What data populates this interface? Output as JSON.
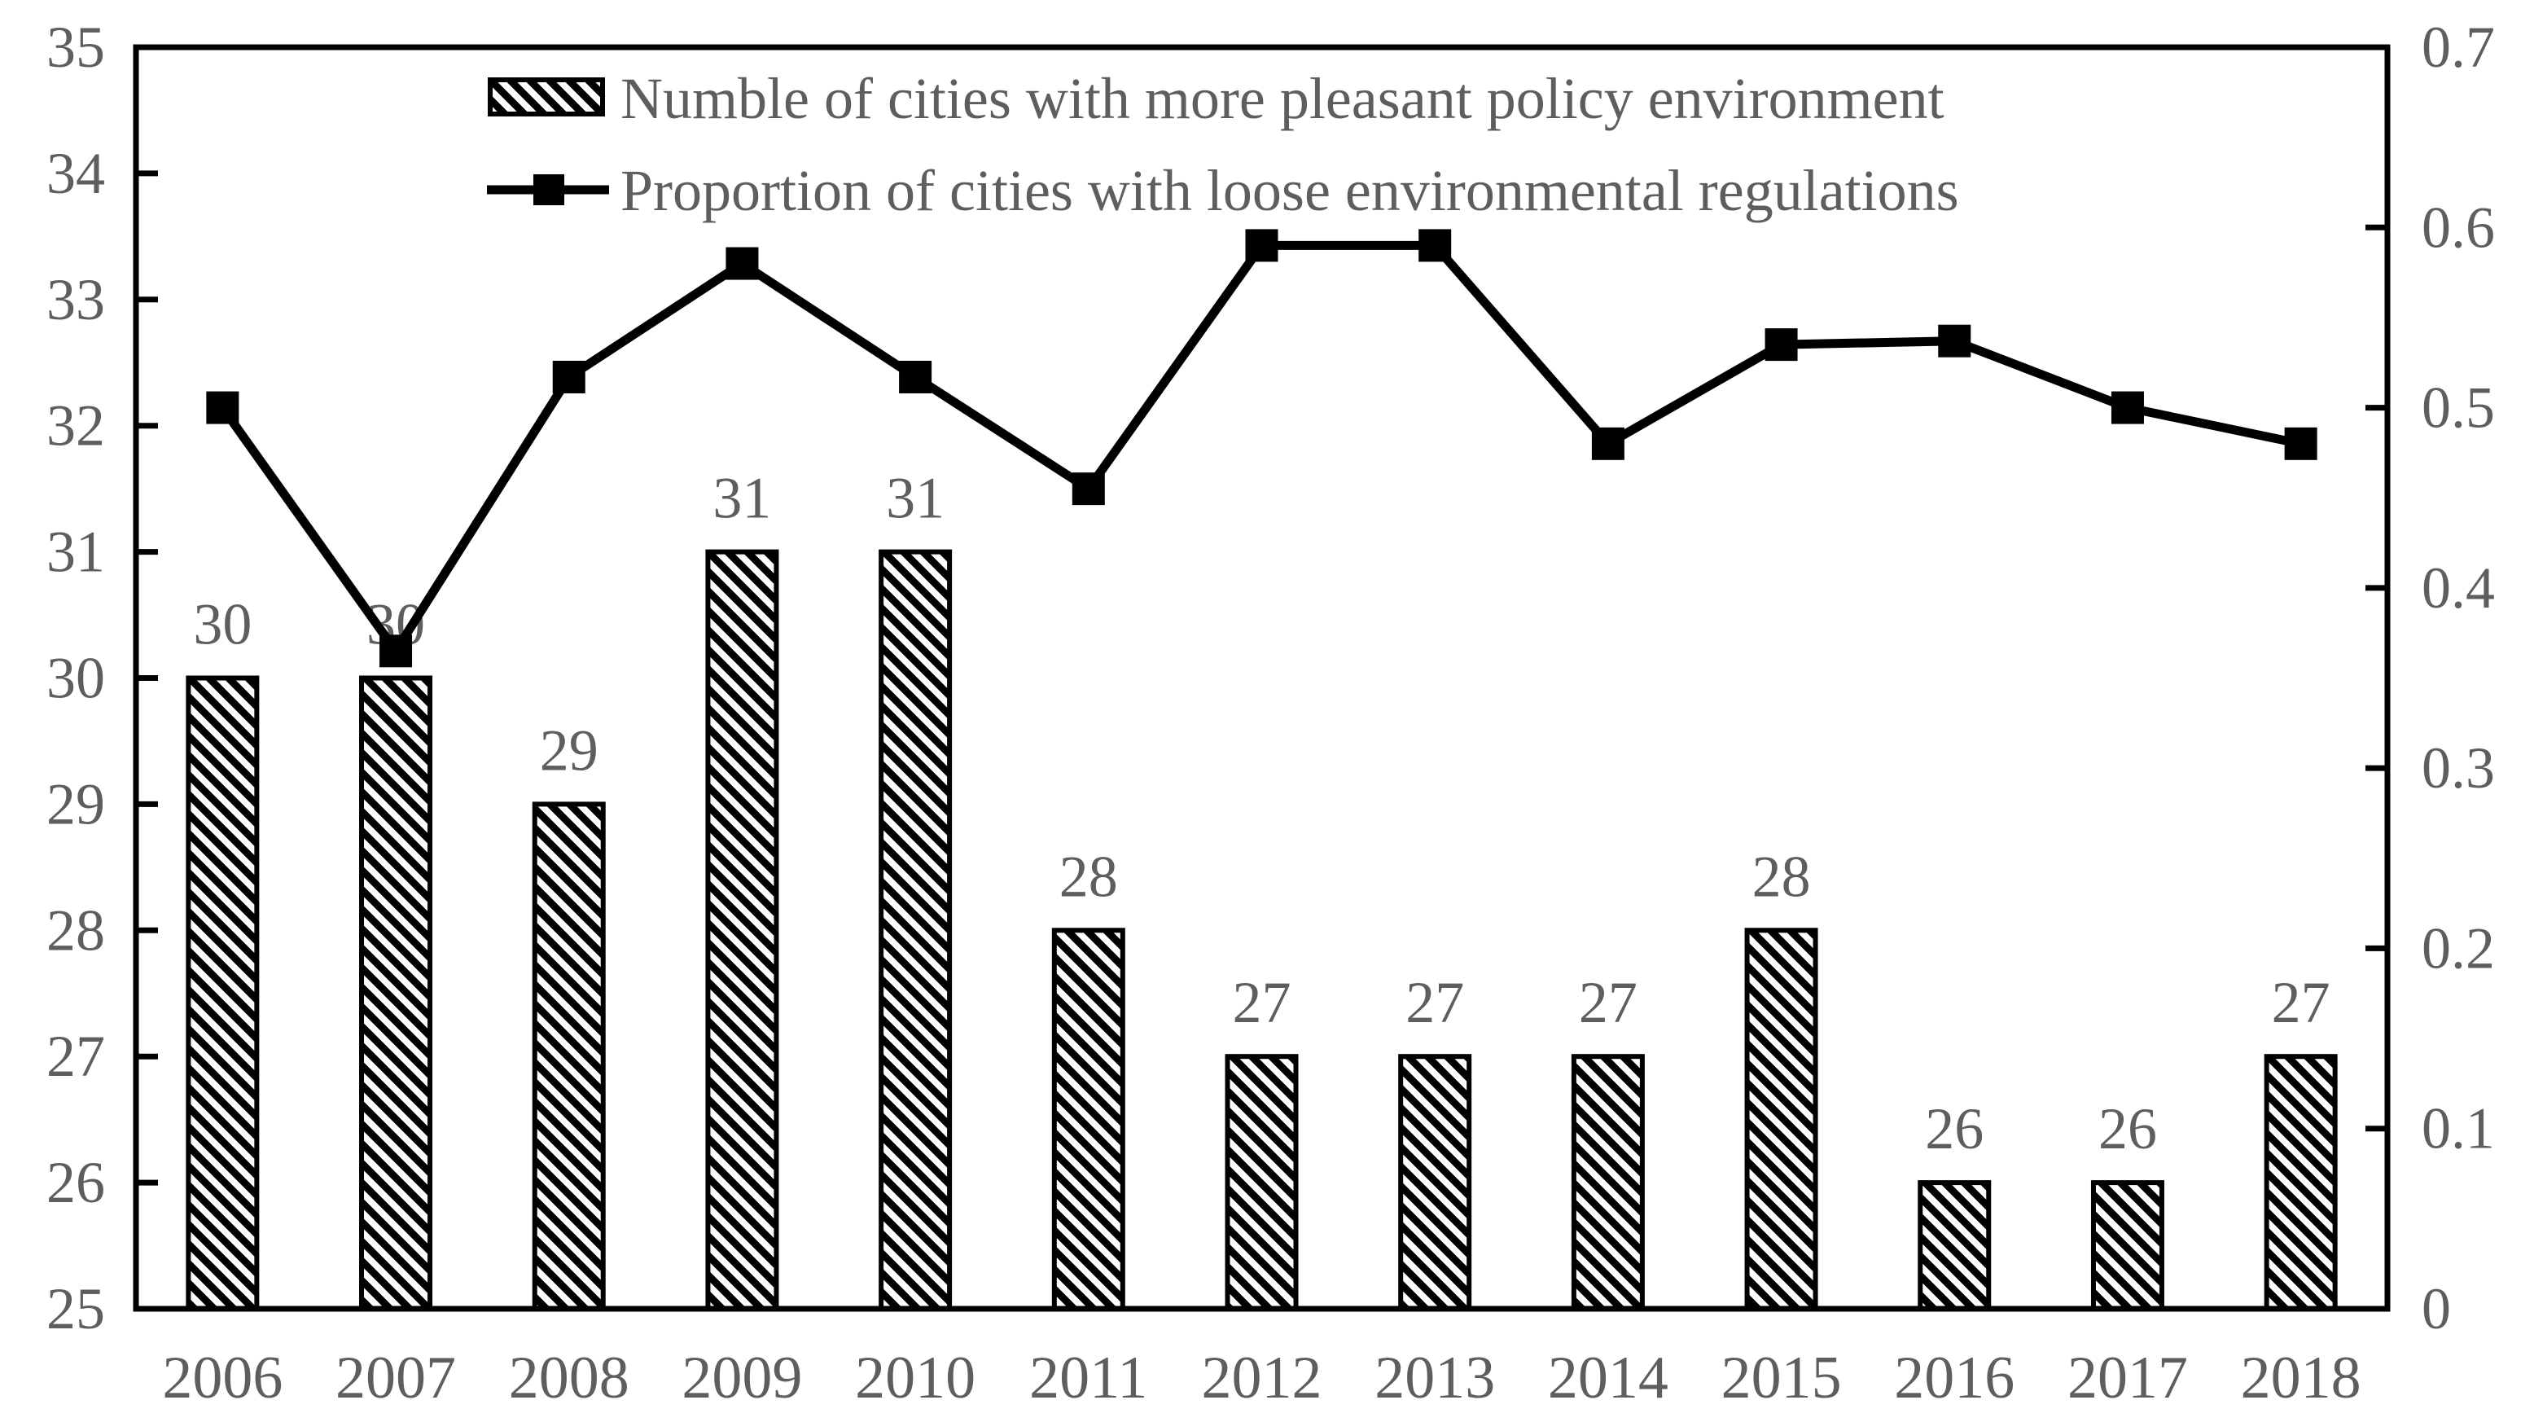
{
  "chart_data": {
    "type": "combo",
    "categories": [
      "2006",
      "2007",
      "2008",
      "2009",
      "2010",
      "2011",
      "2012",
      "2013",
      "2014",
      "2015",
      "2016",
      "2017",
      "2018"
    ],
    "series": [
      {
        "name": "Numble of cities with more pleasant policy environment",
        "type": "bar",
        "axis": "left",
        "values": [
          30,
          30,
          29,
          31,
          31,
          28,
          27,
          27,
          27,
          28,
          26,
          26,
          27
        ],
        "data_labels": [
          "30",
          "30",
          "29",
          "31",
          "31",
          "28",
          "27",
          "27",
          "27",
          "28",
          "26",
          "26",
          "27"
        ],
        "fill": "diagonal-hatch",
        "color": "#000000"
      },
      {
        "name": "Proportion of cities with loose environmental regulations",
        "type": "line",
        "axis": "right",
        "marker": "square",
        "color": "#000000",
        "values": [
          0.5,
          0.365,
          0.517,
          0.58,
          0.517,
          0.455,
          0.59,
          0.59,
          0.48,
          0.535,
          0.537,
          0.5,
          0.48
        ]
      }
    ],
    "left_axis": {
      "min": 25,
      "max": 35,
      "step": 1,
      "tick_labels": [
        "25",
        "26",
        "27",
        "28",
        "29",
        "30",
        "31",
        "32",
        "33",
        "34",
        "35"
      ]
    },
    "right_axis": {
      "min": 0,
      "max": 0.7,
      "step": 0.1,
      "tick_labels": [
        "0",
        "0.1",
        "0.2",
        "0.3",
        "0.4",
        "0.5",
        "0.6",
        "0.7"
      ]
    },
    "legend_position": "top-center",
    "grid": false,
    "colors": {
      "text": "#5e5e5e",
      "series": "#000000",
      "background": "#ffffff",
      "border": "#000000"
    }
  }
}
